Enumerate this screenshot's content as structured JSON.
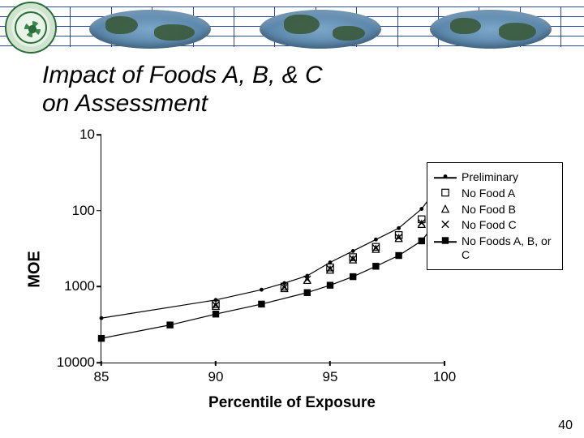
{
  "slide": {
    "title_line1": "Impact of Foods A, B, & C",
    "title_line2": "on Assessment",
    "number": "40"
  },
  "chart": {
    "type": "line",
    "ylabel": "MOE",
    "xlabel": "Percentile of Exposure",
    "xlim": [
      85,
      100
    ],
    "xticks": [
      85,
      90,
      95,
      100
    ],
    "ylim": [
      10,
      10000
    ],
    "yscale": "log",
    "yticks": [
      10,
      100,
      1000,
      10000
    ],
    "background_color": "#ffffff",
    "axis_color": "#000000",
    "tick_fontsize": 17,
    "label_fontsize": 20,
    "marker_color": "#000000",
    "line_color": "#000000",
    "line_width": 1.2,
    "series": [
      {
        "name": "Preliminary",
        "marker": "dot",
        "x": [
          85,
          90,
          92,
          93,
          94,
          95,
          96,
          97,
          98,
          99,
          99.5,
          99.9
        ],
        "moe": [
          2600,
          1500,
          1100,
          900,
          720,
          480,
          340,
          240,
          170,
          95,
          60,
          30
        ]
      },
      {
        "name": "No Food A",
        "marker": "square",
        "x": [
          90,
          93,
          95,
          96,
          97,
          98,
          99,
          99.5,
          99.9
        ],
        "moe": [
          1700,
          1000,
          560,
          410,
          300,
          210,
          130,
          85,
          40
        ]
      },
      {
        "name": "No Food B",
        "marker": "triangle",
        "x": [
          90,
          93,
          94,
          95,
          96,
          97,
          98,
          99,
          99.5,
          99.9
        ],
        "moe": [
          1800,
          1050,
          820,
          600,
          440,
          320,
          230,
          150,
          95,
          45
        ]
      },
      {
        "name": "No Food C",
        "marker": "x",
        "x": [
          90,
          93,
          94,
          95,
          96,
          97,
          98,
          99,
          99.5,
          99.9
        ],
        "moe": [
          1750,
          1020,
          800,
          580,
          430,
          310,
          225,
          145,
          92,
          43
        ]
      },
      {
        "name": "No Foods A, B, or C",
        "marker": "filled-square",
        "x": [
          85,
          88,
          90,
          92,
          94,
          95,
          96,
          97,
          98,
          99,
          99.5,
          99.9
        ],
        "moe": [
          4800,
          3200,
          2300,
          1700,
          1200,
          960,
          740,
          540,
          390,
          250,
          160,
          80
        ]
      }
    ],
    "legend": {
      "position": "right",
      "border_color": "#000000",
      "background": "#ffffff",
      "fontsize": 14,
      "items": [
        {
          "label": "Preliminary",
          "marker": "dot"
        },
        {
          "label": "No Food A",
          "marker": "square"
        },
        {
          "label": "No Food B",
          "marker": "triangle"
        },
        {
          "label": "No Food C",
          "marker": "x"
        },
        {
          "label": "No Foods A, B, or C",
          "marker": "filled-square"
        }
      ]
    }
  },
  "banner": {
    "grid_color": "#2a4a9a",
    "globe_count": 3,
    "globe_colors": [
      "#7ca7c9",
      "#5a86aa",
      "#3e6a8e"
    ]
  }
}
